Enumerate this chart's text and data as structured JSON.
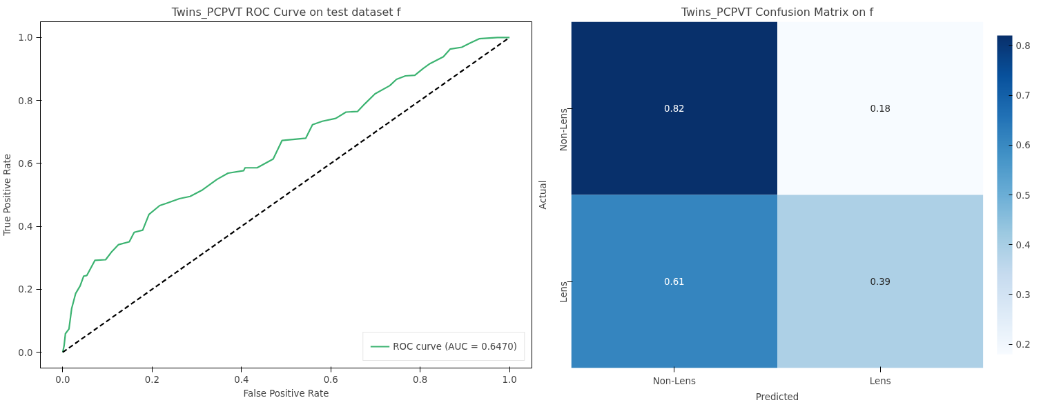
{
  "chart_data": [
    {
      "type": "line",
      "title": "Twins_PCPVT ROC Curve on test dataset f",
      "xlabel": "False Positive Rate",
      "ylabel": "True Positive Rate",
      "xlim": [
        -0.05,
        1.05
      ],
      "ylim": [
        -0.05,
        1.05
      ],
      "xticks": [
        {
          "value": 0,
          "label": "0.0"
        },
        0.2,
        0.4,
        0.6,
        0.8,
        {
          "value": 1,
          "label": "1.0"
        }
      ],
      "yticks": [
        {
          "value": 0,
          "label": "0.0"
        },
        0.2,
        0.4,
        0.6,
        0.8,
        {
          "value": 1,
          "label": "1.0"
        }
      ],
      "grid": false,
      "legend": "bottom right",
      "series": [
        {
          "name": "ROC curve (AUC = 0.6470)",
          "color": "#3cb371",
          "line_style": "solid",
          "x": [
            0,
            0.003,
            0.006,
            0.014,
            0.02,
            0.029,
            0.039,
            0.047,
            0.054,
            0.072,
            0.096,
            0.11,
            0.125,
            0.149,
            0.16,
            0.179,
            0.193,
            0.217,
            0.232,
            0.261,
            0.285,
            0.313,
            0.345,
            0.37,
            0.405,
            0.408,
            0.435,
            0.471,
            0.491,
            0.544,
            0.559,
            0.581,
            0.611,
            0.634,
            0.66,
            0.676,
            0.699,
            0.732,
            0.747,
            0.767,
            0.788,
            0.807,
            0.822,
            0.852,
            0.867,
            0.893,
            0.913,
            0.932,
            0.973,
            1.0
          ],
          "values": [
            0,
            0.02,
            0.059,
            0.074,
            0.139,
            0.187,
            0.211,
            0.242,
            0.244,
            0.292,
            0.294,
            0.32,
            0.342,
            0.351,
            0.381,
            0.388,
            0.438,
            0.466,
            0.473,
            0.488,
            0.495,
            0.516,
            0.549,
            0.569,
            0.577,
            0.586,
            0.586,
            0.614,
            0.673,
            0.68,
            0.723,
            0.734,
            0.743,
            0.763,
            0.765,
            0.789,
            0.821,
            0.847,
            0.867,
            0.878,
            0.88,
            0.902,
            0.917,
            0.939,
            0.963,
            0.969,
            0.983,
            0.996,
            1.0,
            1.0
          ]
        },
        {
          "color": "#000000",
          "line_style": "dashed",
          "x": [
            0,
            1
          ],
          "values": [
            0,
            1
          ]
        }
      ]
    },
    {
      "type": "heatmap",
      "title": "Twins_PCPVT Confusion Matrix on f",
      "xlabel": "Predicted",
      "ylabel": "Actual",
      "categories": [
        "Non-Lens",
        "Lens"
      ],
      "y_categories": [
        "Non-Lens",
        "Lens"
      ],
      "cells": [
        [
          0.82,
          0.18
        ],
        [
          0.61,
          0.39
        ]
      ],
      "data_labels": true,
      "clim": [
        0.18,
        0.82
      ],
      "cticks": [
        0.2,
        0.3,
        0.4,
        0.5,
        0.6,
        0.7,
        0.8
      ]
    }
  ]
}
